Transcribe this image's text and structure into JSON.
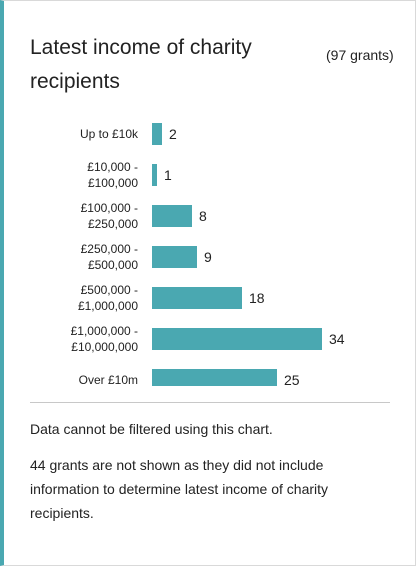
{
  "panel": {
    "title": "Latest income of charity recipients",
    "count": "(97 grants)",
    "note": "Data cannot be filtered using this chart.",
    "missing_note": "44 grants are not shown as they did not include information to determine latest income of charity recipients."
  },
  "chart_data": {
    "type": "bar",
    "orientation": "horizontal",
    "categories": [
      [
        "Up to £10k"
      ],
      [
        "£10,000 -",
        "£100,000"
      ],
      [
        "£100,000 -",
        "£250,000"
      ],
      [
        "£250,000 -",
        "£500,000"
      ],
      [
        "£500,000 -",
        "£1,000,000"
      ],
      [
        "£1,000,000 -",
        "£10,000,000"
      ],
      [
        "Over £10m"
      ]
    ],
    "values": [
      2,
      1,
      8,
      9,
      18,
      34,
      25
    ],
    "title": "",
    "xlabel": "",
    "ylabel": "",
    "grid": false,
    "bar_color": "#4aa8b1"
  }
}
